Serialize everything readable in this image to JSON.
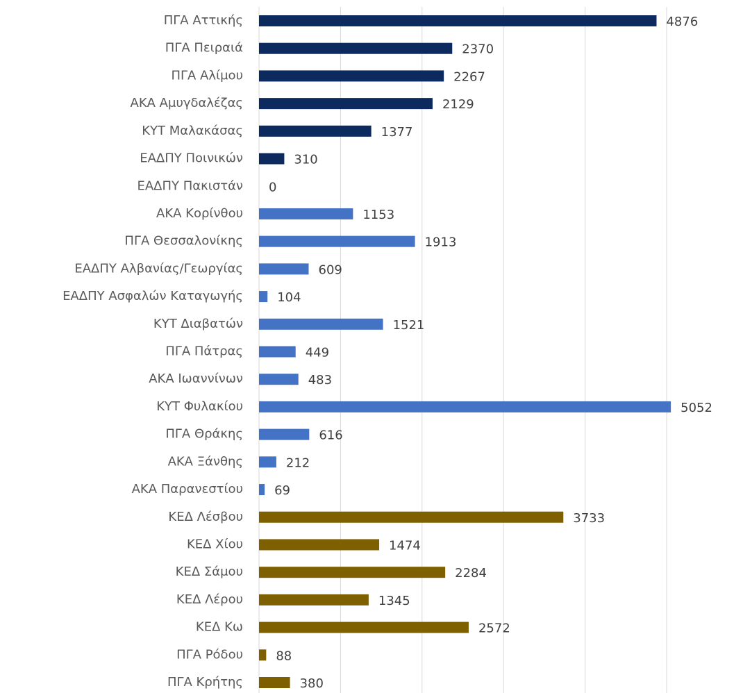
{
  "chart_data": {
    "type": "barh",
    "categories": [
      "ΠΓΑ Αττικής",
      "ΠΓΑ Πειραιά",
      "ΠΓΑ Αλίμου",
      "ΑΚΑ Αμυγδαλέζας",
      "ΚΥΤ Μαλακάσας",
      "ΕΑΔΠΥ Ποινικών",
      "ΕΑΔΠΥ Πακιστάν",
      "ΑΚΑ Κορίνθου",
      "ΠΓΑ Θεσσαλονίκης",
      "ΕΑΔΠΥ Αλβανίας/Γεωργίας",
      "ΕΑΔΠΥ Ασφαλών Καταγωγής",
      "ΚΥΤ Διαβατών",
      "ΠΓΑ Πάτρας",
      "ΑΚΑ Ιωαννίνων",
      "ΚΥΤ Φυλακίου",
      "ΠΓΑ Θράκης",
      "ΑΚΑ Ξάνθης",
      "ΑΚΑ Παρανεστίου",
      "ΚΕΔ Λέσβου",
      "ΚΕΔ Χίου",
      "ΚΕΔ Σάμου",
      "ΚΕΔ Λέρου",
      "ΚΕΔ Κω",
      "ΠΓΑ Ρόδου",
      "ΠΓΑ Κρήτης"
    ],
    "values": [
      4876,
      2370,
      2267,
      2129,
      1377,
      310,
      0,
      1153,
      1913,
      609,
      104,
      1521,
      449,
      483,
      5052,
      616,
      212,
      69,
      3733,
      1474,
      2284,
      1345,
      2572,
      88,
      380
    ],
    "colors": [
      "#0d2a5e",
      "#0d2a5e",
      "#0d2a5e",
      "#0d2a5e",
      "#0d2a5e",
      "#0d2a5e",
      "#0d2a5e",
      "#4472c4",
      "#4472c4",
      "#4472c4",
      "#4472c4",
      "#4472c4",
      "#4472c4",
      "#4472c4",
      "#4472c4",
      "#4472c4",
      "#4472c4",
      "#4472c4",
      "#7f6000",
      "#7f6000",
      "#7f6000",
      "#7f6000",
      "#7f6000",
      "#7f6000",
      "#7f6000"
    ],
    "xlim": [
      0,
      5400
    ],
    "xticks": [
      0,
      1000,
      2000,
      3000,
      4000,
      5000
    ],
    "grid": true
  }
}
